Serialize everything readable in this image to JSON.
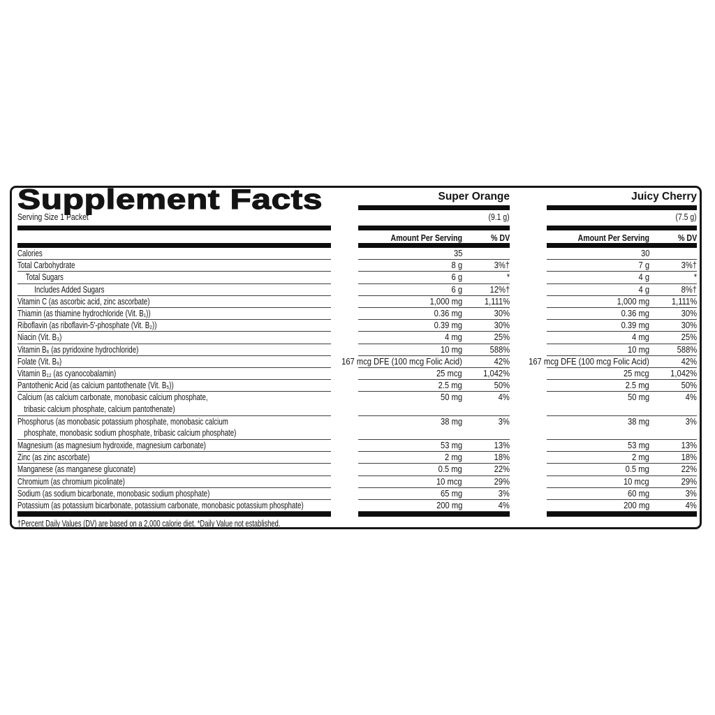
{
  "panel": {
    "title": "Supplement Facts",
    "serving_size": "Serving Size 1 Packet",
    "footnote": "†Percent Daily Values (DV) are based on a 2,000 calorie diet. *Daily Value not established."
  },
  "flavors": [
    {
      "name": "Super Orange",
      "weight": "(9.1 g)",
      "amount_header": "Amount Per Serving",
      "dv_header": "% DV"
    },
    {
      "name": "Juicy Cherry",
      "weight": "(7.5 g)",
      "amount_header": "Amount Per Serving",
      "dv_header": "% DV"
    }
  ],
  "rows": [
    {
      "label_lines": [
        "Calories"
      ],
      "indent": 0,
      "values": [
        {
          "amount": "35",
          "dv": ""
        },
        {
          "amount": "30",
          "dv": ""
        }
      ]
    },
    {
      "label_lines": [
        "Total Carbohydrate"
      ],
      "indent": 0,
      "values": [
        {
          "amount": "8 g",
          "dv": "3%†"
        },
        {
          "amount": "7 g",
          "dv": "3%†"
        }
      ]
    },
    {
      "label_lines": [
        "Total Sugars"
      ],
      "indent": 1,
      "values": [
        {
          "amount": "6 g",
          "dv": "*"
        },
        {
          "amount": "4 g",
          "dv": "*"
        }
      ]
    },
    {
      "label_lines": [
        "Includes Added Sugars"
      ],
      "indent": 2,
      "values": [
        {
          "amount": "6 g",
          "dv": "12%†"
        },
        {
          "amount": "4 g",
          "dv": "8%†"
        }
      ]
    },
    {
      "label_lines": [
        "Vitamin C (as ascorbic acid, zinc ascorbate)"
      ],
      "indent": 0,
      "values": [
        {
          "amount": "1,000 mg",
          "dv": "1,111%"
        },
        {
          "amount": "1,000 mg",
          "dv": "1,111%"
        }
      ]
    },
    {
      "label_lines": [
        "Thiamin (as thiamine hydrochloride (Vit. B₁))"
      ],
      "indent": 0,
      "values": [
        {
          "amount": "0.36 mg",
          "dv": "30%"
        },
        {
          "amount": "0.36 mg",
          "dv": "30%"
        }
      ]
    },
    {
      "label_lines": [
        "Riboflavin (as riboflavin-5'-phosphate (Vit. B₂))"
      ],
      "indent": 0,
      "values": [
        {
          "amount": "0.39 mg",
          "dv": "30%"
        },
        {
          "amount": "0.39 mg",
          "dv": "30%"
        }
      ]
    },
    {
      "label_lines": [
        "Niacin (Vit. B₃)"
      ],
      "indent": 0,
      "values": [
        {
          "amount": "4 mg",
          "dv": "25%"
        },
        {
          "amount": "4 mg",
          "dv": "25%"
        }
      ]
    },
    {
      "label_lines": [
        "Vitamin B₆ (as pyridoxine hydrochloride)"
      ],
      "indent": 0,
      "values": [
        {
          "amount": "10 mg",
          "dv": "588%"
        },
        {
          "amount": "10 mg",
          "dv": "588%"
        }
      ]
    },
    {
      "label_lines": [
        "Folate (Vit. B₉)"
      ],
      "indent": 0,
      "values": [
        {
          "amount": "167 mcg DFE (100 mcg Folic Acid)",
          "dv": "42%"
        },
        {
          "amount": "167 mcg DFE (100 mcg Folic Acid)",
          "dv": "42%"
        }
      ]
    },
    {
      "label_lines": [
        "Vitamin B₁₂ (as cyanocobalamin)"
      ],
      "indent": 0,
      "values": [
        {
          "amount": "25 mcg",
          "dv": "1,042%"
        },
        {
          "amount": "25 mcg",
          "dv": "1,042%"
        }
      ]
    },
    {
      "label_lines": [
        "Pantothenic Acid (as calcium pantothenate (Vit. B₅))"
      ],
      "indent": 0,
      "values": [
        {
          "amount": "2.5 mg",
          "dv": "50%"
        },
        {
          "amount": "2.5 mg",
          "dv": "50%"
        }
      ]
    },
    {
      "label_lines": [
        "Calcium (as calcium carbonate, monobasic calcium phosphate,",
        "tribasic calcium phosphate, calcium pantothenate)"
      ],
      "indent": 0,
      "values": [
        {
          "amount": "50 mg",
          "dv": "4%"
        },
        {
          "amount": "50 mg",
          "dv": "4%"
        }
      ]
    },
    {
      "label_lines": [
        "Phosphorus (as monobasic potassium phosphate, monobasic calcium",
        "phosphate, monobasic sodium phosphate, tribasic calcium phosphate)"
      ],
      "indent": 0,
      "values": [
        {
          "amount": "38 mg",
          "dv": "3%"
        },
        {
          "amount": "38 mg",
          "dv": "3%"
        }
      ]
    },
    {
      "label_lines": [
        "Magnesium (as magnesium hydroxide, magnesium carbonate)"
      ],
      "indent": 0,
      "values": [
        {
          "amount": "53 mg",
          "dv": "13%"
        },
        {
          "amount": "53 mg",
          "dv": "13%"
        }
      ]
    },
    {
      "label_lines": [
        "Zinc (as zinc ascorbate)"
      ],
      "indent": 0,
      "values": [
        {
          "amount": "2 mg",
          "dv": "18%"
        },
        {
          "amount": "2 mg",
          "dv": "18%"
        }
      ]
    },
    {
      "label_lines": [
        "Manganese (as manganese gluconate)"
      ],
      "indent": 0,
      "values": [
        {
          "amount": "0.5 mg",
          "dv": "22%"
        },
        {
          "amount": "0.5 mg",
          "dv": "22%"
        }
      ]
    },
    {
      "label_lines": [
        "Chromium (as chromium picolinate)"
      ],
      "indent": 0,
      "values": [
        {
          "amount": "10 mcg",
          "dv": "29%"
        },
        {
          "amount": "10 mcg",
          "dv": "29%"
        }
      ]
    },
    {
      "label_lines": [
        "Sodium (as sodium bicarbonate, monobasic sodium phosphate)"
      ],
      "indent": 0,
      "values": [
        {
          "amount": "65 mg",
          "dv": "3%"
        },
        {
          "amount": "60 mg",
          "dv": "3%"
        }
      ]
    },
    {
      "label_lines": [
        "Potassium (as potassium bicarbonate, potassium carbonate, monobasic potassium phosphate)"
      ],
      "indent": 0,
      "values": [
        {
          "amount": "200 mg",
          "dv": "4%"
        },
        {
          "amount": "200 mg",
          "dv": "4%"
        }
      ]
    }
  ],
  "colors": {
    "ink": "#141414",
    "thin_rule": "#3d3d3d",
    "thick_bar": "#0d0d0d",
    "background": "#ffffff"
  }
}
